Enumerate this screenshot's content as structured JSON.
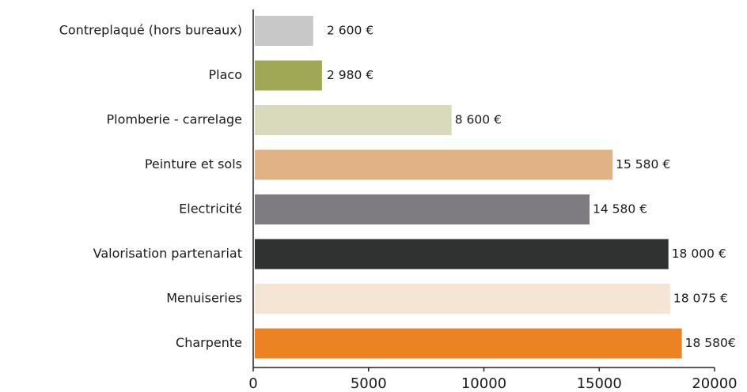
{
  "chart_data": {
    "type": "barh",
    "categories": [
      "Contreplaqué (hors bureaux)",
      "Placo",
      "Plomberie - carrelage",
      "Peinture et sols",
      "Electricité",
      "Valorisation partenariat",
      "Menuiseries",
      "Charpente"
    ],
    "values": [
      2600,
      2980,
      8600,
      15580,
      14580,
      18000,
      18075,
      18580
    ],
    "value_labels": [
      "2 600 €",
      "2 980 €",
      "8 600 €",
      "15 580 €",
      "14 580 €",
      "18 000 €",
      "18 075 €",
      "18 580€"
    ],
    "colors": [
      "#c9c8c9",
      "#a0a855",
      "#d8dabb",
      "#e1b286",
      "#7e7c80",
      "#303231",
      "#f4e5d5",
      "#ec8322"
    ],
    "xlim": [
      0,
      20000
    ],
    "xticks": [
      0,
      5000,
      10000,
      15000,
      20000
    ]
  }
}
